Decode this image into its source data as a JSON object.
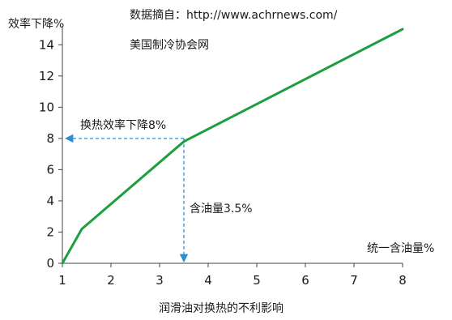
{
  "source_note": "数据摘自：http://www.achrnews.com/",
  "source_org": "美国制冷协会网",
  "chart_data": {
    "type": "line",
    "title": "",
    "ylabel": "效率下降%",
    "xlabel": "润滑油对换热的不利影响",
    "x_axis_end_label": "统一含油量%",
    "xlim": [
      1,
      8
    ],
    "ylim": [
      0,
      15
    ],
    "x_ticks": [
      1,
      2,
      3,
      4,
      5,
      6,
      7,
      8
    ],
    "y_ticks": [
      0,
      2,
      4,
      6,
      8,
      10,
      12,
      14
    ],
    "grid": false,
    "series": [
      {
        "color": "#1e9e3e",
        "x": [
          1.0,
          1.4,
          3.5,
          8.0
        ],
        "y": [
          0.0,
          2.2,
          7.8,
          15.0
        ]
      }
    ],
    "annotations": [
      {
        "text": "换热效率下降8%",
        "x": 3.5,
        "y": 8,
        "direction": "to-y-axis"
      },
      {
        "text": "含油量3.5%",
        "x": 3.5,
        "y": 8,
        "direction": "to-x-axis"
      }
    ],
    "annotation_color": "#2b8fd6"
  }
}
